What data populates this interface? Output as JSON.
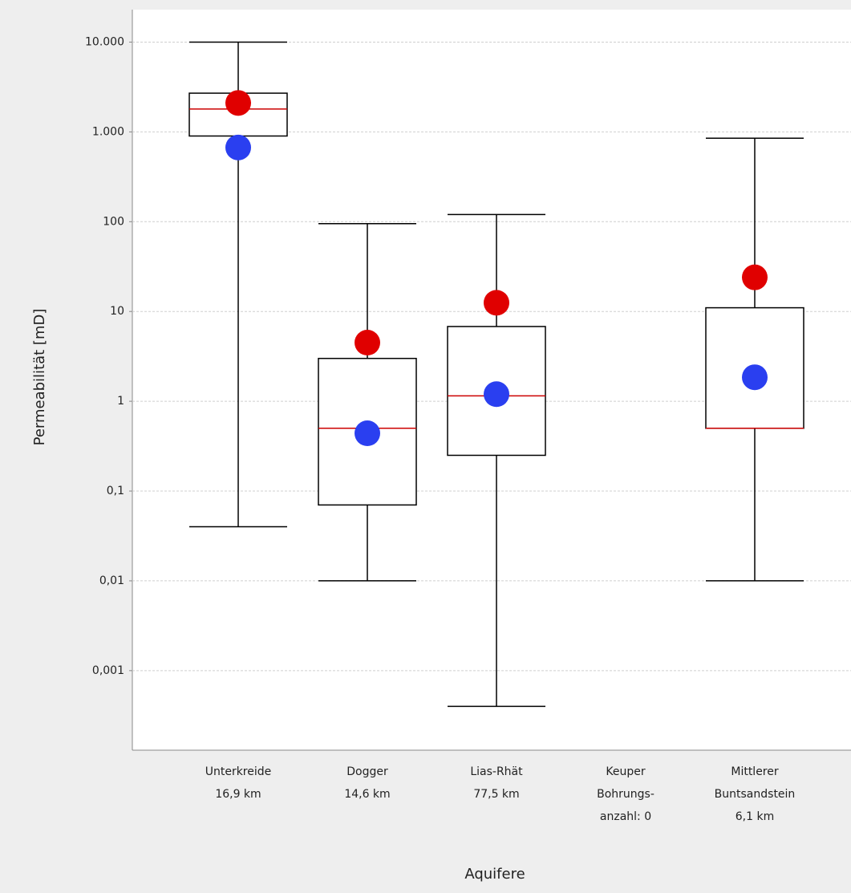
{
  "chart_data": {
    "type": "box",
    "y_label": "Permeabilität [mD]",
    "x_label": "Aquifere",
    "log_scale": true,
    "grid": true,
    "categories": [
      [
        "Unterkreide",
        "16,9 km"
      ],
      [
        "Dogger",
        "14,6 km"
      ],
      [
        "Lias-Rhät",
        "77,5 km"
      ],
      [
        "Keuper",
        "Bohrungs-",
        "anzahl: 0"
      ],
      [
        "Mittlerer",
        "Buntsandstein",
        "6,1 km"
      ]
    ],
    "boxes": [
      {
        "whislo": 0.04,
        "q1": 900,
        "med": 1800,
        "q3": 2700,
        "whishi": 10000
      },
      {
        "whislo": 0.01,
        "q1": 0.07,
        "med": 0.5,
        "q3": 3,
        "whishi": 95
      },
      {
        "whislo": 0.0004,
        "q1": 0.25,
        "med": 1.15,
        "q3": 6.8,
        "whishi": 120
      },
      null,
      {
        "whislo": 0.01,
        "q1": 0.5,
        "med": 0.5,
        "q3": 11,
        "whishi": 850
      }
    ],
    "box_color": "#000000",
    "median_color": "#cc0000",
    "markers": [
      {
        "color": "#e00000",
        "values": [
          2100,
          4.5,
          12.5,
          null,
          24
        ]
      },
      {
        "color": "#2a3ff0",
        "values": [
          670,
          0.44,
          1.2,
          null,
          1.85
        ]
      }
    ],
    "ylim": [
      0.00013,
      23000
    ],
    "yticks": [
      {
        "value": 0.001,
        "label": "0,001"
      },
      {
        "value": 0.01,
        "label": "0,01"
      },
      {
        "value": 0.1,
        "label": "0,1"
      },
      1,
      10,
      100,
      {
        "value": 1000,
        "label": "1.000"
      },
      {
        "value": 10000,
        "label": "10.000"
      }
    ]
  }
}
